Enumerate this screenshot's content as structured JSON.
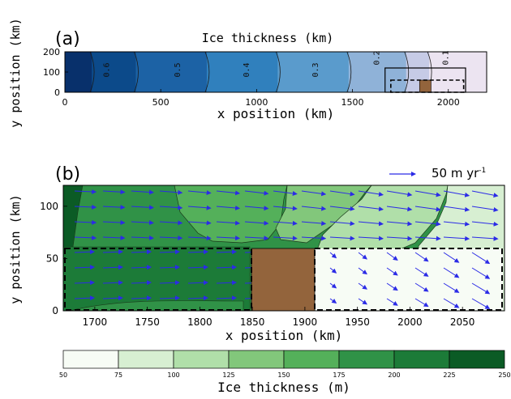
{
  "panel_a": {
    "label": "(a)",
    "title": "Ice thickness (km)",
    "xlabel": "x position (km)",
    "ylabel": "y position (km)"
  },
  "panel_b": {
    "label": "(b)",
    "xlabel": "x position (km)",
    "ylabel": "y position (km)",
    "vector_key_label": "50 m yr",
    "vector_key_exponent": "-1"
  },
  "colorbar": {
    "label": "Ice thickness (m)",
    "ticks": [
      "50",
      "75",
      "100",
      "125",
      "150",
      "175",
      "200",
      "225",
      "250"
    ],
    "colors": [
      "#f7fcf5",
      "#d7efd2",
      "#b0dfa9",
      "#82c77b",
      "#54b05a",
      "#309247",
      "#1c7b38",
      "#0b5b25",
      "#00381a"
    ]
  },
  "chart_data": [
    {
      "type": "heatmap",
      "panel": "a",
      "title": "Ice thickness (km)",
      "xlabel": "x position (km)",
      "ylabel": "y position (km)",
      "xlim": [
        0,
        2200
      ],
      "ylim": [
        0,
        200
      ],
      "xticks": [
        0,
        500,
        1000,
        1500,
        2000
      ],
      "yticks": [
        0,
        100,
        200
      ],
      "contour_levels": [
        0.1,
        0.2,
        0.3,
        0.4,
        0.5,
        0.6
      ],
      "contour_labels": [
        {
          "text": "0.6",
          "x": 230,
          "y": 110
        },
        {
          "text": "0.5",
          "x": 600,
          "y": 110
        },
        {
          "text": "0.4",
          "x": 960,
          "y": 110
        },
        {
          "text": "0.3",
          "x": 1320,
          "y": 110
        },
        {
          "text": "0.2",
          "x": 1640,
          "y": 170
        },
        {
          "text": "0.1",
          "x": 2000,
          "y": 170
        }
      ],
      "contour_x": [
        140,
        370,
        740,
        1110,
        1480,
        1780,
        1900
      ],
      "band_colors": [
        "#08306b",
        "#0c4a8a",
        "#1c62a5",
        "#3080bd",
        "#5a9bcc",
        "#8fb2d8",
        "#c6cbe6",
        "#ece4f1",
        "#fbf0f7"
      ],
      "land_box": {
        "x0": 1850,
        "x1": 1910,
        "y0": 0,
        "y1": 60
      },
      "zoom_box": {
        "x0": 1670,
        "x1": 2090,
        "y0": 0,
        "y1": 120
      },
      "dashed_box": {
        "x0": 1700,
        "x1": 2080,
        "y0": 0,
        "y1": 60
      }
    },
    {
      "type": "heatmap",
      "panel": "b",
      "xlabel": "x position (km)",
      "ylabel": "y position (km)",
      "xlim": [
        1670,
        2090
      ],
      "ylim": [
        0,
        120
      ],
      "xticks": [
        1700,
        1750,
        1800,
        1850,
        1900,
        1950,
        2000,
        2050
      ],
      "yticks": [
        0,
        50,
        100
      ],
      "levels": [
        50,
        75,
        100,
        125,
        150,
        175,
        200,
        225,
        250
      ],
      "land_box": {
        "x0": 1846,
        "x1": 1908,
        "y0": 0,
        "y1": 60
      },
      "dashed_boxes": [
        {
          "x0": 1670,
          "x1": 1846,
          "y0": 0,
          "y1": 60
        },
        {
          "x0": 1908,
          "x1": 2088,
          "y0": 0,
          "y1": 60
        }
      ],
      "vector_key": {
        "label": "50 m yr-1",
        "magnitude": 50
      }
    }
  ]
}
